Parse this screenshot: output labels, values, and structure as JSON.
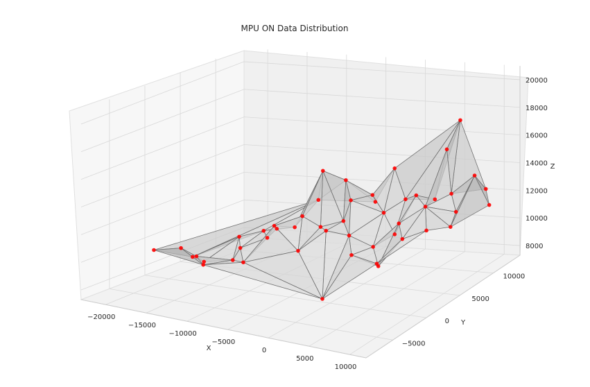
{
  "chart_data": {
    "type": "surface3d",
    "title": "MPU ON Data Distribution",
    "xlabel": "X",
    "ylabel": "Y",
    "zlabel": "Z",
    "x_ticks": [
      "−20000",
      "−15000",
      "−10000",
      "−5000",
      "0",
      "5000",
      "10000"
    ],
    "y_ticks": [
      "−5000",
      "0",
      "5000",
      "10000"
    ],
    "z_ticks": [
      "8000",
      "10000",
      "12000",
      "14000",
      "16000",
      "18000",
      "20000"
    ],
    "xlim": [
      -23000,
      12000
    ],
    "ylim": [
      -9000,
      14000
    ],
    "zlim": [
      7300,
      21000
    ],
    "grid": true,
    "colors": {
      "points": "#ff0000",
      "surface": "#a8a8a8",
      "edges": "#707070"
    },
    "points": [
      [
        -21000,
        -1000,
        9500
      ],
      [
        -17500,
        500,
        9000
      ],
      [
        -17200,
        -1500,
        10100
      ],
      [
        -16000,
        400,
        8800
      ],
      [
        -15800,
        -900,
        9500
      ],
      [
        -13000,
        2000,
        10500
      ],
      [
        -12000,
        1000,
        10000
      ],
      [
        -11000,
        3200,
        10800
      ],
      [
        -9500,
        2000,
        10700
      ],
      [
        -14000,
        -2000,
        9300
      ],
      [
        -12500,
        500,
        9200
      ],
      [
        -10500,
        -300,
        9400
      ],
      [
        -9000,
        2800,
        11200
      ],
      [
        -7800,
        4000,
        11100
      ],
      [
        -8200,
        1500,
        11800
      ],
      [
        -6500,
        3600,
        12100
      ],
      [
        -6000,
        6000,
        14800
      ],
      [
        -4500,
        7600,
        13800
      ],
      [
        -3200,
        3200,
        11400
      ],
      [
        -4800,
        1000,
        10400
      ],
      [
        -2000,
        9000,
        12000
      ],
      [
        -1500,
        8000,
        12800
      ],
      [
        -1000,
        4000,
        11000
      ],
      [
        0,
        9500,
        14400
      ],
      [
        1200,
        6500,
        12100
      ],
      [
        2000,
        4000,
        10400
      ],
      [
        3500,
        3000,
        9400
      ],
      [
        5000,
        1000,
        10300
      ],
      [
        5500,
        9000,
        12600
      ],
      [
        7000,
        11000,
        17800
      ],
      [
        7000,
        9000,
        16300
      ],
      [
        8000,
        8500,
        13300
      ],
      [
        9000,
        8000,
        12200
      ],
      [
        10000,
        6000,
        11800
      ],
      [
        6000,
        7000,
        12700
      ],
      [
        4000,
        8000,
        13100
      ],
      [
        1000,
        2000,
        10300
      ],
      [
        -500,
        -500,
        7700
      ],
      [
        -3000,
        5500,
        11500
      ],
      [
        -5000,
        4500,
        11200
      ],
      [
        -7000,
        6500,
        12500
      ],
      [
        -2500,
        6000,
        12900
      ],
      [
        4200,
        5200,
        11900
      ],
      [
        6500,
        3000,
        11600
      ],
      [
        8500,
        4200,
        12000
      ],
      [
        10500,
        9000,
        14600
      ],
      [
        9800,
        11500,
        12800
      ],
      [
        11500,
        10000,
        12200
      ],
      [
        3000,
        6000,
        10800
      ],
      [
        1800,
        9000,
        12400
      ]
    ]
  }
}
